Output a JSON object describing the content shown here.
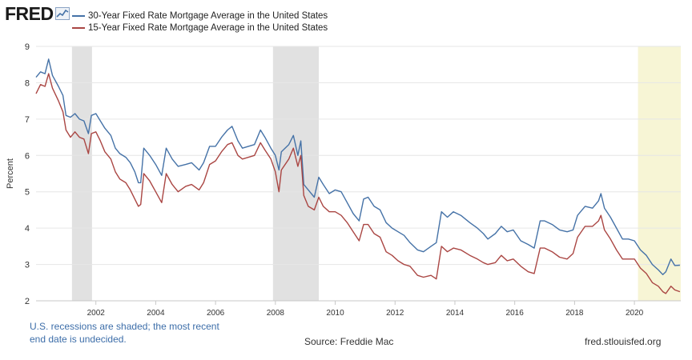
{
  "brand": {
    "logo_text": "FRED",
    "logo_icon": "chart-line-icon"
  },
  "footer": {
    "note": "U.S. recessions are shaded; the most recent end date is undecided.",
    "source": "Source: Freddie Mac",
    "url": "fred.stlouisfed.org"
  },
  "colors": {
    "series_30": "#4572a7",
    "series_15": "#aa4643",
    "recession": "#e1e1e1",
    "undecided": "#f7f5d5",
    "grid": "#e6e6e6",
    "axis_text": "#333333"
  },
  "chart_data": {
    "type": "line",
    "title": "",
    "xlabel": "",
    "ylabel": "Percent",
    "xlim": [
      2000,
      2021.55
    ],
    "ylim": [
      2,
      9
    ],
    "yticks": [
      2,
      3,
      4,
      5,
      6,
      7,
      8,
      9
    ],
    "xticks": [
      2002,
      2004,
      2006,
      2008,
      2010,
      2012,
      2014,
      2016,
      2018,
      2020
    ],
    "grid": "horizontal",
    "legend_placement": "top-left",
    "recessions": [
      {
        "start": 2001.2,
        "end": 2001.87
      },
      {
        "start": 2007.92,
        "end": 2009.45
      }
    ],
    "undecided_recession": {
      "start": 2020.12,
      "end": 2021.55
    },
    "series": [
      {
        "name": "30-Year Fixed Rate Mortgage Average in the United States",
        "color": "#4572a7",
        "points": [
          [
            2000.0,
            8.15
          ],
          [
            2000.15,
            8.3
          ],
          [
            2000.3,
            8.25
          ],
          [
            2000.42,
            8.65
          ],
          [
            2000.55,
            8.2
          ],
          [
            2000.75,
            7.9
          ],
          [
            2000.9,
            7.65
          ],
          [
            2001.0,
            7.1
          ],
          [
            2001.15,
            7.05
          ],
          [
            2001.3,
            7.15
          ],
          [
            2001.45,
            7.0
          ],
          [
            2001.6,
            6.95
          ],
          [
            2001.75,
            6.6
          ],
          [
            2001.85,
            7.1
          ],
          [
            2002.0,
            7.15
          ],
          [
            2002.15,
            6.95
          ],
          [
            2002.3,
            6.75
          ],
          [
            2002.5,
            6.55
          ],
          [
            2002.65,
            6.2
          ],
          [
            2002.8,
            6.05
          ],
          [
            2003.0,
            5.95
          ],
          [
            2003.15,
            5.8
          ],
          [
            2003.3,
            5.55
          ],
          [
            2003.42,
            5.25
          ],
          [
            2003.5,
            5.25
          ],
          [
            2003.6,
            6.2
          ],
          [
            2003.8,
            6.0
          ],
          [
            2004.0,
            5.75
          ],
          [
            2004.2,
            5.45
          ],
          [
            2004.35,
            6.2
          ],
          [
            2004.55,
            5.9
          ],
          [
            2004.75,
            5.7
          ],
          [
            2005.0,
            5.75
          ],
          [
            2005.2,
            5.8
          ],
          [
            2005.45,
            5.6
          ],
          [
            2005.6,
            5.8
          ],
          [
            2005.8,
            6.25
          ],
          [
            2006.0,
            6.25
          ],
          [
            2006.2,
            6.5
          ],
          [
            2006.4,
            6.7
          ],
          [
            2006.55,
            6.8
          ],
          [
            2006.75,
            6.4
          ],
          [
            2006.9,
            6.2
          ],
          [
            2007.1,
            6.25
          ],
          [
            2007.3,
            6.3
          ],
          [
            2007.5,
            6.7
          ],
          [
            2007.65,
            6.5
          ],
          [
            2007.85,
            6.2
          ],
          [
            2008.0,
            6.0
          ],
          [
            2008.12,
            5.6
          ],
          [
            2008.2,
            6.1
          ],
          [
            2008.45,
            6.3
          ],
          [
            2008.6,
            6.55
          ],
          [
            2008.75,
            6.0
          ],
          [
            2008.85,
            6.4
          ],
          [
            2008.95,
            5.2
          ],
          [
            2009.1,
            5.05
          ],
          [
            2009.3,
            4.85
          ],
          [
            2009.45,
            5.4
          ],
          [
            2009.6,
            5.2
          ],
          [
            2009.8,
            4.95
          ],
          [
            2010.0,
            5.05
          ],
          [
            2010.2,
            5.0
          ],
          [
            2010.4,
            4.7
          ],
          [
            2010.6,
            4.4
          ],
          [
            2010.8,
            4.2
          ],
          [
            2010.95,
            4.8
          ],
          [
            2011.1,
            4.85
          ],
          [
            2011.3,
            4.6
          ],
          [
            2011.5,
            4.5
          ],
          [
            2011.7,
            4.15
          ],
          [
            2011.9,
            4.0
          ],
          [
            2012.1,
            3.9
          ],
          [
            2012.3,
            3.8
          ],
          [
            2012.5,
            3.6
          ],
          [
            2012.75,
            3.4
          ],
          [
            2012.95,
            3.35
          ],
          [
            2013.2,
            3.5
          ],
          [
            2013.38,
            3.6
          ],
          [
            2013.55,
            4.45
          ],
          [
            2013.75,
            4.3
          ],
          [
            2013.95,
            4.45
          ],
          [
            2014.2,
            4.35
          ],
          [
            2014.5,
            4.15
          ],
          [
            2014.75,
            4.0
          ],
          [
            2014.95,
            3.85
          ],
          [
            2015.1,
            3.7
          ],
          [
            2015.35,
            3.85
          ],
          [
            2015.55,
            4.05
          ],
          [
            2015.75,
            3.9
          ],
          [
            2015.95,
            3.95
          ],
          [
            2016.2,
            3.65
          ],
          [
            2016.45,
            3.55
          ],
          [
            2016.65,
            3.45
          ],
          [
            2016.85,
            4.2
          ],
          [
            2017.0,
            4.2
          ],
          [
            2017.25,
            4.1
          ],
          [
            2017.5,
            3.95
          ],
          [
            2017.75,
            3.9
          ],
          [
            2017.95,
            3.95
          ],
          [
            2018.1,
            4.35
          ],
          [
            2018.35,
            4.6
          ],
          [
            2018.6,
            4.55
          ],
          [
            2018.8,
            4.75
          ],
          [
            2018.88,
            4.95
          ],
          [
            2019.0,
            4.55
          ],
          [
            2019.2,
            4.3
          ],
          [
            2019.4,
            4.0
          ],
          [
            2019.6,
            3.7
          ],
          [
            2019.8,
            3.7
          ],
          [
            2020.0,
            3.65
          ],
          [
            2020.2,
            3.4
          ],
          [
            2020.4,
            3.25
          ],
          [
            2020.6,
            3.0
          ],
          [
            2020.8,
            2.85
          ],
          [
            2020.95,
            2.72
          ],
          [
            2021.05,
            2.8
          ],
          [
            2021.22,
            3.15
          ],
          [
            2021.35,
            2.97
          ],
          [
            2021.52,
            2.98
          ]
        ]
      },
      {
        "name": "15-Year Fixed Rate Mortgage Average in the United States",
        "color": "#aa4643",
        "points": [
          [
            2000.0,
            7.7
          ],
          [
            2000.15,
            7.95
          ],
          [
            2000.3,
            7.9
          ],
          [
            2000.42,
            8.25
          ],
          [
            2000.55,
            7.85
          ],
          [
            2000.75,
            7.5
          ],
          [
            2000.9,
            7.2
          ],
          [
            2001.0,
            6.7
          ],
          [
            2001.15,
            6.5
          ],
          [
            2001.3,
            6.65
          ],
          [
            2001.45,
            6.5
          ],
          [
            2001.6,
            6.45
          ],
          [
            2001.75,
            6.05
          ],
          [
            2001.85,
            6.6
          ],
          [
            2002.0,
            6.65
          ],
          [
            2002.15,
            6.4
          ],
          [
            2002.3,
            6.1
          ],
          [
            2002.5,
            5.9
          ],
          [
            2002.65,
            5.55
          ],
          [
            2002.8,
            5.35
          ],
          [
            2003.0,
            5.25
          ],
          [
            2003.15,
            5.05
          ],
          [
            2003.3,
            4.8
          ],
          [
            2003.42,
            4.6
          ],
          [
            2003.5,
            4.65
          ],
          [
            2003.6,
            5.5
          ],
          [
            2003.8,
            5.3
          ],
          [
            2004.0,
            5.0
          ],
          [
            2004.2,
            4.7
          ],
          [
            2004.35,
            5.5
          ],
          [
            2004.55,
            5.2
          ],
          [
            2004.75,
            5.0
          ],
          [
            2005.0,
            5.15
          ],
          [
            2005.2,
            5.2
          ],
          [
            2005.45,
            5.05
          ],
          [
            2005.6,
            5.25
          ],
          [
            2005.8,
            5.75
          ],
          [
            2006.0,
            5.85
          ],
          [
            2006.2,
            6.1
          ],
          [
            2006.4,
            6.3
          ],
          [
            2006.55,
            6.35
          ],
          [
            2006.75,
            6.0
          ],
          [
            2006.9,
            5.9
          ],
          [
            2007.1,
            5.95
          ],
          [
            2007.3,
            6.0
          ],
          [
            2007.5,
            6.35
          ],
          [
            2007.65,
            6.15
          ],
          [
            2007.85,
            5.9
          ],
          [
            2008.0,
            5.55
          ],
          [
            2008.12,
            5.0
          ],
          [
            2008.2,
            5.6
          ],
          [
            2008.45,
            5.9
          ],
          [
            2008.6,
            6.2
          ],
          [
            2008.75,
            5.7
          ],
          [
            2008.85,
            6.0
          ],
          [
            2008.95,
            4.9
          ],
          [
            2009.1,
            4.6
          ],
          [
            2009.3,
            4.5
          ],
          [
            2009.45,
            4.85
          ],
          [
            2009.6,
            4.6
          ],
          [
            2009.8,
            4.45
          ],
          [
            2010.0,
            4.45
          ],
          [
            2010.2,
            4.35
          ],
          [
            2010.4,
            4.15
          ],
          [
            2010.6,
            3.9
          ],
          [
            2010.8,
            3.65
          ],
          [
            2010.95,
            4.1
          ],
          [
            2011.1,
            4.1
          ],
          [
            2011.3,
            3.85
          ],
          [
            2011.5,
            3.75
          ],
          [
            2011.7,
            3.35
          ],
          [
            2011.9,
            3.25
          ],
          [
            2012.1,
            3.1
          ],
          [
            2012.3,
            3.0
          ],
          [
            2012.5,
            2.95
          ],
          [
            2012.75,
            2.7
          ],
          [
            2012.95,
            2.65
          ],
          [
            2013.2,
            2.7
          ],
          [
            2013.38,
            2.6
          ],
          [
            2013.55,
            3.5
          ],
          [
            2013.75,
            3.35
          ],
          [
            2013.95,
            3.45
          ],
          [
            2014.2,
            3.4
          ],
          [
            2014.5,
            3.25
          ],
          [
            2014.75,
            3.15
          ],
          [
            2014.95,
            3.05
          ],
          [
            2015.1,
            3.0
          ],
          [
            2015.35,
            3.05
          ],
          [
            2015.55,
            3.25
          ],
          [
            2015.75,
            3.1
          ],
          [
            2015.95,
            3.15
          ],
          [
            2016.2,
            2.95
          ],
          [
            2016.45,
            2.8
          ],
          [
            2016.65,
            2.75
          ],
          [
            2016.85,
            3.45
          ],
          [
            2017.0,
            3.45
          ],
          [
            2017.25,
            3.35
          ],
          [
            2017.5,
            3.2
          ],
          [
            2017.75,
            3.15
          ],
          [
            2017.95,
            3.3
          ],
          [
            2018.1,
            3.75
          ],
          [
            2018.35,
            4.05
          ],
          [
            2018.6,
            4.05
          ],
          [
            2018.8,
            4.2
          ],
          [
            2018.88,
            4.35
          ],
          [
            2019.0,
            3.95
          ],
          [
            2019.2,
            3.7
          ],
          [
            2019.4,
            3.4
          ],
          [
            2019.6,
            3.15
          ],
          [
            2019.8,
            3.15
          ],
          [
            2020.0,
            3.15
          ],
          [
            2020.2,
            2.9
          ],
          [
            2020.4,
            2.75
          ],
          [
            2020.6,
            2.5
          ],
          [
            2020.8,
            2.4
          ],
          [
            2020.95,
            2.25
          ],
          [
            2021.05,
            2.2
          ],
          [
            2021.22,
            2.4
          ],
          [
            2021.35,
            2.3
          ],
          [
            2021.52,
            2.25
          ]
        ]
      }
    ]
  }
}
